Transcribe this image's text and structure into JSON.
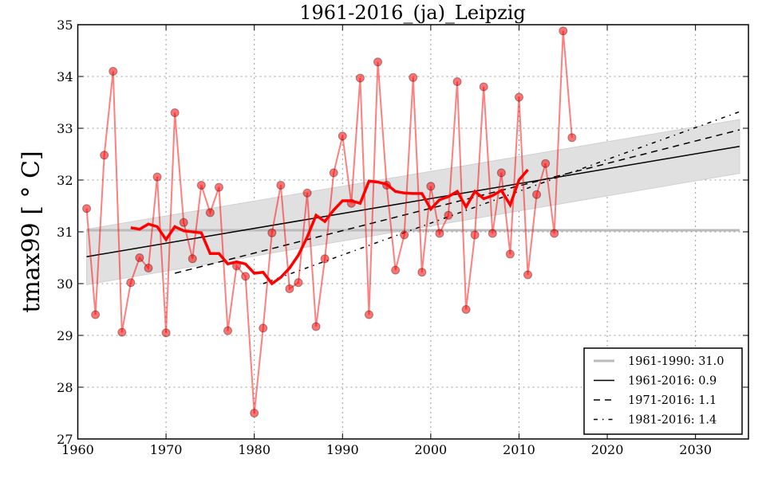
{
  "chart_data": {
    "type": "line",
    "title": "1961-2016_(ja)_Leipzig",
    "xlabel": "",
    "ylabel": "tmax99 [ ° C]",
    "xlim": [
      1960,
      2036
    ],
    "ylim": [
      27,
      35
    ],
    "grid": true,
    "xticks": [
      1960,
      1970,
      1980,
      1990,
      2000,
      2010,
      2020,
      2030
    ],
    "yticks": [
      27,
      28,
      29,
      30,
      31,
      32,
      33,
      34,
      35
    ],
    "xtick_labels": [
      "1960",
      "1970",
      "1980",
      "1990",
      "2000",
      "2010",
      "2020",
      "2030"
    ],
    "ytick_labels": [
      "27",
      "28",
      "29",
      "30",
      "31",
      "32",
      "33",
      "34",
      "35"
    ],
    "legend_position": "lower-right",
    "colors": {
      "annual": "#ff0000",
      "running_mean": "#ff0000",
      "baseline": "#bbbbbb",
      "trend": "#000000",
      "band": "#e0e0e0"
    },
    "series": [
      {
        "name": "annual",
        "x": [
          1961,
          1962,
          1963,
          1964,
          1965,
          1966,
          1967,
          1968,
          1969,
          1970,
          1971,
          1972,
          1973,
          1974,
          1975,
          1976,
          1977,
          1978,
          1979,
          1980,
          1981,
          1982,
          1983,
          1984,
          1985,
          1986,
          1987,
          1988,
          1989,
          1990,
          1991,
          1992,
          1993,
          1994,
          1995,
          1996,
          1997,
          1998,
          1999,
          2000,
          2001,
          2002,
          2003,
          2004,
          2005,
          2006,
          2007,
          2008,
          2009,
          2010,
          2011,
          2012,
          2013,
          2014,
          2015,
          2016
        ],
        "values": [
          31.45,
          29.4,
          32.48,
          34.1,
          29.06,
          30.02,
          30.5,
          30.3,
          32.06,
          29.05,
          33.3,
          31.18,
          30.48,
          31.9,
          31.37,
          31.86,
          29.09,
          30.34,
          30.14,
          27.5,
          29.14,
          30.98,
          31.9,
          29.9,
          30.02,
          31.75,
          29.17,
          30.48,
          32.14,
          32.85,
          31.55,
          33.97,
          29.4,
          34.28,
          31.9,
          30.26,
          30.94,
          33.98,
          30.22,
          31.88,
          30.97,
          31.32,
          33.9,
          29.5,
          30.94,
          33.8,
          30.97,
          32.14,
          30.57,
          33.6,
          30.17,
          31.72,
          32.32,
          30.97,
          34.88,
          32.82
        ]
      },
      {
        "name": "running_mean_11yr",
        "x": [
          1966,
          1967,
          1968,
          1969,
          1970,
          1971,
          1972,
          1973,
          1974,
          1975,
          1976,
          1977,
          1978,
          1979,
          1980,
          1981,
          1982,
          1983,
          1984,
          1985,
          1986,
          1987,
          1988,
          1989,
          1990,
          1991,
          1992,
          1993,
          1994,
          1995,
          1996,
          1997,
          1998,
          1999,
          2000,
          2001,
          2002,
          2003,
          2004,
          2005,
          2006,
          2007,
          2008,
          2009,
          2010,
          2011
        ],
        "values": [
          31.08,
          31.05,
          31.15,
          31.1,
          30.85,
          31.1,
          31.02,
          31.0,
          30.98,
          30.58,
          30.58,
          30.38,
          30.42,
          30.38,
          30.2,
          30.22,
          30.0,
          30.12,
          30.3,
          30.55,
          30.9,
          31.32,
          31.2,
          31.42,
          31.6,
          31.6,
          31.55,
          31.98,
          31.96,
          31.92,
          31.78,
          31.75,
          31.74,
          31.74,
          31.44,
          31.62,
          31.68,
          31.78,
          31.48,
          31.78,
          31.64,
          31.7,
          31.8,
          31.52,
          32.0,
          32.2
        ]
      },
      {
        "name": "1961-1990: 31.0",
        "kind": "baseline",
        "x": [
          1961,
          2035
        ],
        "values": [
          31.03,
          31.03
        ]
      },
      {
        "name": "1961-2016: 0.9",
        "kind": "trend-solid",
        "x": [
          1961,
          2035
        ],
        "values": [
          30.52,
          32.65
        ]
      },
      {
        "name": "1971-2016: 1.1",
        "kind": "trend-dashed",
        "x": [
          1971,
          2035
        ],
        "values": [
          30.2,
          32.97
        ]
      },
      {
        "name": "1981-2016: 1.4",
        "kind": "trend-dashdot",
        "x": [
          1981,
          2035
        ],
        "values": [
          30.0,
          33.32
        ]
      },
      {
        "name": "confidence_band",
        "kind": "band",
        "x": [
          1961,
          2035
        ],
        "lower": [
          29.98,
          32.13
        ],
        "upper": [
          31.05,
          33.17
        ]
      }
    ],
    "legend": [
      {
        "label": "1961-1990: 31.0",
        "style": "baseline"
      },
      {
        "label": "1961-2016: 0.9",
        "style": "solid"
      },
      {
        "label": "1971-2016: 1.1",
        "style": "dashed"
      },
      {
        "label": "1981-2016: 1.4",
        "style": "dashdot"
      }
    ]
  }
}
